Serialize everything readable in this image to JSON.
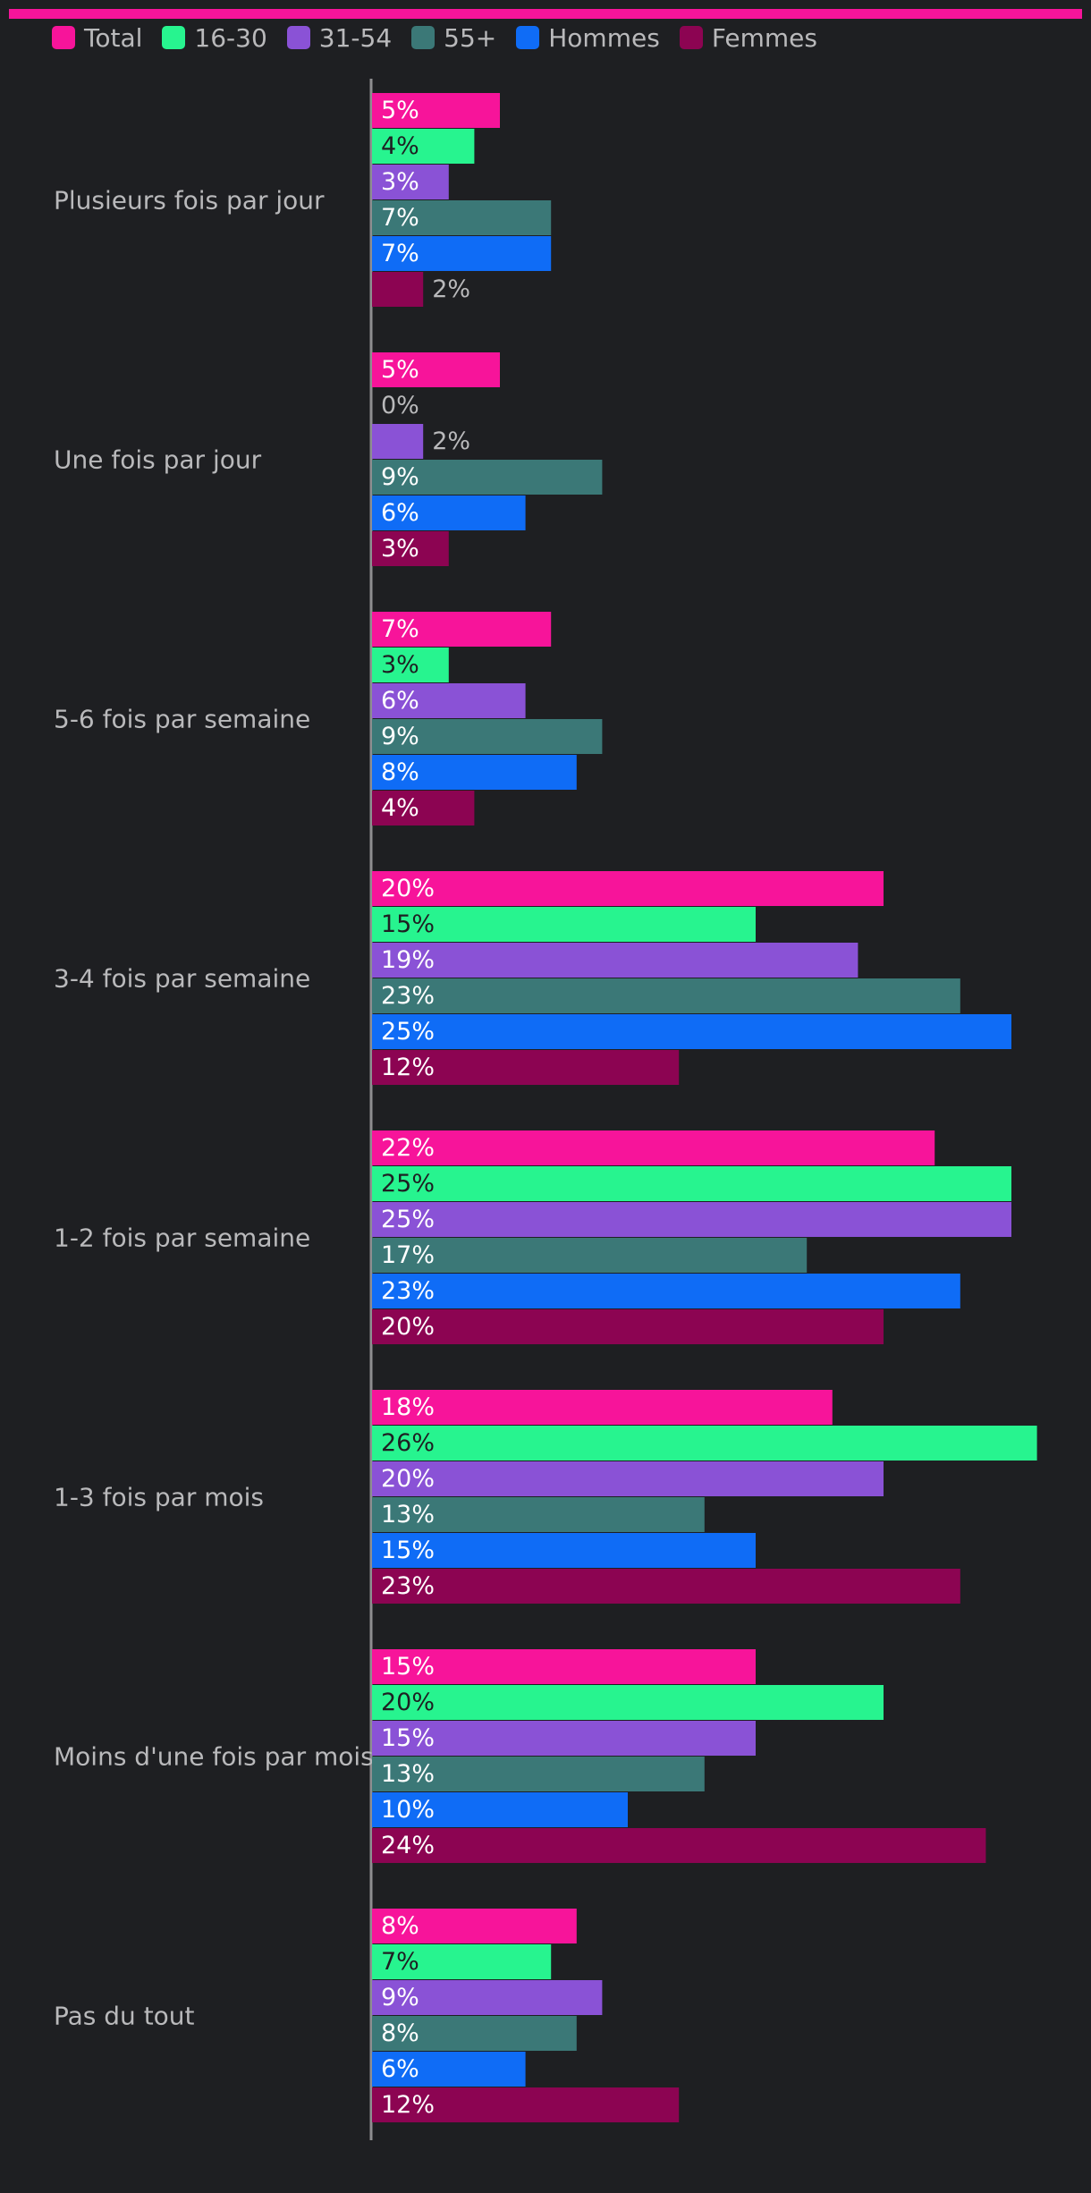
{
  "chart_data": {
    "type": "bar",
    "orientation": "horizontal",
    "title": "",
    "xlabel": "",
    "ylabel": "",
    "legend_position": "top-left",
    "grid": false,
    "xlim": [
      0,
      27
    ],
    "categories": [
      "Plusieurs fois par jour",
      "Une fois par jour",
      "5-6 fois par semaine",
      "3-4 fois par semaine",
      "1-2 fois par semaine",
      "1-3 fois par mois",
      "Moins d'une fois par mois",
      "Pas du tout"
    ],
    "series": [
      {
        "name": "Total",
        "color": "#f7149a",
        "label_color": "#ffffff",
        "values": [
          5,
          5,
          7,
          20,
          22,
          18,
          15,
          8
        ]
      },
      {
        "name": "16-30",
        "color": "#27f48f",
        "label_color": "#1e1f22",
        "values": [
          4,
          0,
          3,
          15,
          25,
          26,
          20,
          7
        ]
      },
      {
        "name": "31-54",
        "color": "#8a52d6",
        "label_color": "#ffffff",
        "values": [
          3,
          2,
          6,
          19,
          25,
          20,
          15,
          9
        ]
      },
      {
        "name": "55+",
        "color": "#3b7877",
        "label_color": "#ffffff",
        "values": [
          7,
          9,
          9,
          23,
          17,
          13,
          13,
          8
        ]
      },
      {
        "name": "Hommes",
        "color": "#0f6cf6",
        "label_color": "#ffffff",
        "values": [
          7,
          6,
          8,
          25,
          23,
          15,
          10,
          6
        ]
      },
      {
        "name": "Femmes",
        "color": "#8c0452",
        "label_color": "#ffffff",
        "values": [
          2,
          3,
          4,
          12,
          20,
          23,
          24,
          12
        ]
      }
    ],
    "value_suffix": "%"
  },
  "colors": {
    "background": "#1e1f22",
    "accent_bar": "#f7149a",
    "axis": "#8e8e90",
    "category_text": "#b9b9bb",
    "outside_label": "#b9b9bb"
  }
}
